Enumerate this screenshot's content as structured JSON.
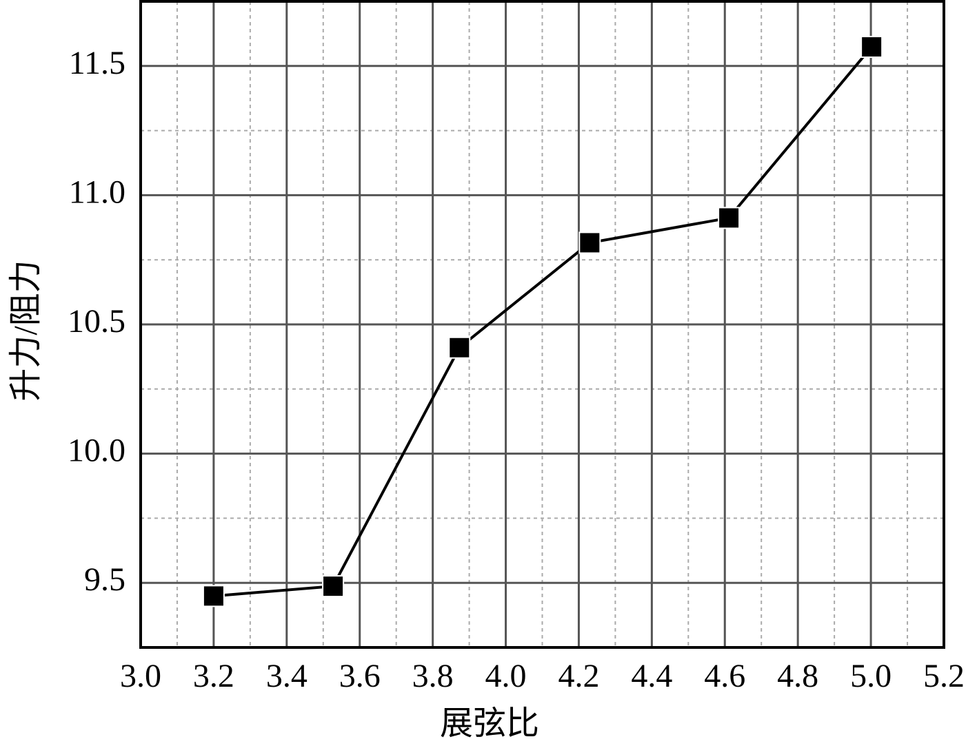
{
  "chart_data": {
    "type": "line",
    "x_label": "展弦比",
    "y_label": "升力/阻力",
    "x": [
      3.2,
      3.527,
      3.873,
      4.23,
      4.611,
      5.002
    ],
    "series": [
      {
        "name": "升力/阻力",
        "color": "#000000",
        "marker": "square",
        "values": [
          9.449,
          9.487,
          10.41,
          10.816,
          10.912,
          11.574
        ]
      }
    ],
    "xlim": [
      3.0,
      5.2
    ],
    "xticks": [
      {
        "value": 3,
        "label": "3.0"
      },
      3.2,
      3.4,
      3.6,
      3.8,
      {
        "value": 4,
        "label": "4.0"
      },
      4.2,
      4.4,
      4.6,
      4.8,
      {
        "value": 5,
        "label": "5.0"
      },
      5.2
    ],
    "xminorticks": [
      3.1,
      3.3,
      3.5,
      3.7,
      3.9,
      4.1,
      4.3,
      4.5,
      4.7,
      4.9,
      5.1
    ],
    "ylim": [
      9.25,
      11.75
    ],
    "yticks": [
      9.5,
      {
        "value": 10,
        "label": "10.0"
      },
      10.5,
      {
        "value": 11,
        "label": "11.0"
      },
      11.5
    ],
    "yminorticks": [
      9.75,
      10.25,
      10.75,
      11.25
    ],
    "grid": true,
    "minor_grid": true
  }
}
